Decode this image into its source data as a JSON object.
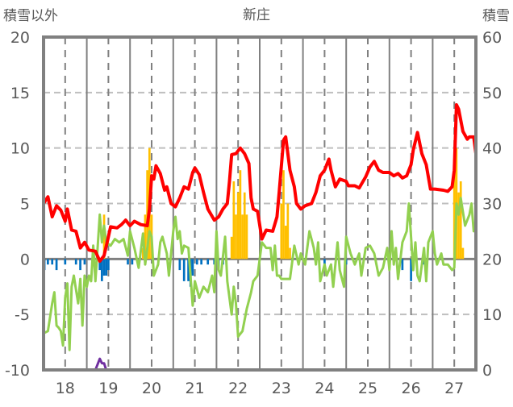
{
  "chart_data": {
    "type": "line",
    "title": "新庄",
    "ylabel": "積雪以外",
    "y2label": "積雪",
    "ylim": [
      -10,
      20
    ],
    "y2lim": [
      0,
      60
    ],
    "xlim": [
      17.5,
      27.5
    ],
    "yticks": [
      "20",
      "15",
      "10",
      "5",
      "0",
      "-5",
      "-10"
    ],
    "y2ticks": [
      "60",
      "50",
      "40",
      "30",
      "20",
      "10",
      "0"
    ],
    "xticks": [
      "18",
      "19",
      "20",
      "21",
      "22",
      "23",
      "24",
      "25",
      "26",
      "27"
    ],
    "grid": true,
    "colors": {
      "red": "#ff0000",
      "green": "#92d050",
      "orange": "#ffc000",
      "blue": "#0070c0",
      "purple": "#7030a0",
      "frame": "#808080"
    },
    "series": [
      {
        "name": "red-line",
        "axis": "left",
        "kind": "line",
        "color": "#ff0000",
        "x": [
          17.5,
          17.6,
          17.7,
          17.8,
          17.9,
          18.0,
          18.05,
          18.15,
          18.25,
          18.35,
          18.45,
          18.55,
          18.7,
          18.8,
          18.9,
          19.0,
          19.05,
          19.2,
          19.3,
          19.4,
          19.5,
          19.6,
          19.75,
          19.9,
          19.95,
          20.0,
          20.05,
          20.1,
          20.2,
          20.3,
          20.35,
          20.45,
          20.55,
          20.65,
          20.75,
          20.85,
          20.95,
          21.0,
          21.1,
          21.2,
          21.3,
          21.45,
          21.55,
          21.65,
          21.75,
          21.8,
          21.85,
          21.95,
          22.05,
          22.15,
          22.25,
          22.3,
          22.35,
          22.45,
          22.55,
          22.65,
          22.8,
          22.9,
          22.95,
          23.05,
          23.1,
          23.2,
          23.3,
          23.35,
          23.45,
          23.55,
          23.7,
          23.8,
          23.9,
          24.0,
          24.1,
          24.15,
          24.25,
          24.35,
          24.5,
          24.55,
          24.7,
          24.8,
          24.95,
          25.05,
          25.15,
          25.25,
          25.35,
          25.5,
          25.6,
          25.7,
          25.8,
          25.9,
          26.0,
          26.05,
          26.15,
          26.25,
          26.35,
          26.45,
          26.55,
          26.75,
          26.85,
          26.95,
          27.0,
          27.05,
          27.1,
          27.2,
          27.3,
          27.35,
          27.45,
          27.5
        ],
        "y": [
          5,
          5.6,
          3.8,
          4.8,
          4.4,
          3.4,
          4.5,
          2.6,
          2.5,
          1.0,
          1.5,
          0.8,
          0.7,
          -0.2,
          0.3,
          2.0,
          2.9,
          2.8,
          3.1,
          3.5,
          3.0,
          3.4,
          3.1,
          3.0,
          4.5,
          7.5,
          7.2,
          8.4,
          7.7,
          6.2,
          6.5,
          5.0,
          4.7,
          5.5,
          6.5,
          6.3,
          7.8,
          8.2,
          7.6,
          6.0,
          4.5,
          3.5,
          3.8,
          4.5,
          5.0,
          7.0,
          9.4,
          9.5,
          10.0,
          9.5,
          8.6,
          5.5,
          4.5,
          4.3,
          1.8,
          2.6,
          2.5,
          3.8,
          6.0,
          10.7,
          11.0,
          8.0,
          6.5,
          5.0,
          4.5,
          4.8,
          5.0,
          6.0,
          7.5,
          8.0,
          9.0,
          8.0,
          6.5,
          7.2,
          7.0,
          6.6,
          6.6,
          6.4,
          7.4,
          8.3,
          8.8,
          8.0,
          7.8,
          7.8,
          7.5,
          7.7,
          7.3,
          7.5,
          8.5,
          9.8,
          11.4,
          9.5,
          8.5,
          6.3,
          6.3,
          6.2,
          6.1,
          6.5,
          8.0,
          13.9,
          13.5,
          11.5,
          10.8,
          11.0,
          11.0,
          9.5
        ]
      },
      {
        "name": "green-line",
        "axis": "left",
        "kind": "line",
        "color": "#92d050",
        "x": [
          17.5,
          17.6,
          17.7,
          17.75,
          17.8,
          17.85,
          17.9,
          17.95,
          18.0,
          18.05,
          18.1,
          18.15,
          18.2,
          18.3,
          18.35,
          18.4,
          18.45,
          18.5,
          18.55,
          18.6,
          18.65,
          18.7,
          18.75,
          18.8,
          18.85,
          18.9,
          18.95,
          19.05,
          19.15,
          19.25,
          19.35,
          19.45,
          19.5,
          19.6,
          19.7,
          19.8,
          19.85,
          19.95,
          20.0,
          20.05,
          20.15,
          20.2,
          20.25,
          20.35,
          20.4,
          20.5,
          20.55,
          20.6,
          20.65,
          20.7,
          20.75,
          20.85,
          20.95,
          21.0,
          21.1,
          21.2,
          21.3,
          21.4,
          21.45,
          21.5,
          21.55,
          21.6,
          21.7,
          21.75,
          21.85,
          21.9,
          21.95,
          22.0,
          22.1,
          22.2,
          22.3,
          22.35,
          22.45,
          22.55,
          22.65,
          22.75,
          22.8,
          22.85,
          22.9,
          22.95,
          23.0,
          23.1,
          23.2,
          23.3,
          23.4,
          23.45,
          23.55,
          23.65,
          23.75,
          23.8,
          23.85,
          23.9,
          24.0,
          24.05,
          24.15,
          24.2,
          24.3,
          24.35,
          24.45,
          24.5,
          24.6,
          24.7,
          24.8,
          24.85,
          24.95,
          25.05,
          25.15,
          25.25,
          25.35,
          25.45,
          25.5,
          25.55,
          25.6,
          25.65,
          25.7,
          25.8,
          25.9,
          25.95,
          26.05,
          26.1,
          26.15,
          26.2,
          26.3,
          26.35,
          26.4,
          26.5,
          26.55,
          26.6,
          26.7,
          26.75,
          26.85,
          26.95,
          27.0,
          27.05,
          27.1,
          27.15,
          27.25,
          27.35,
          27.4,
          27.45,
          27.5
        ],
        "y": [
          -6.7,
          -6.5,
          -4,
          -3,
          -6,
          -6.2,
          -6.5,
          -7.8,
          -3.5,
          -2.2,
          -8.2,
          -2.5,
          -1.5,
          -4,
          -1.8,
          -6,
          -1.5,
          -2.5,
          -1.5,
          -2,
          1.2,
          -2,
          1,
          4,
          1.5,
          3,
          1.5,
          1.2,
          1.8,
          1.5,
          1.8,
          0.3,
          2.5,
          1.0,
          -0.8,
          2.3,
          -0.5,
          2.5,
          2.0,
          -1.5,
          -0.5,
          1.5,
          2.0,
          0.5,
          -1.5,
          2.5,
          3.8,
          1.8,
          2.5,
          0.5,
          1.2,
          1.0,
          -4.2,
          -2,
          -3.5,
          -2.5,
          -3,
          -1.5,
          -3,
          2.5,
          -1,
          -1.5,
          2,
          -2,
          -5,
          -2.5,
          -4,
          -7,
          -6.5,
          -4.5,
          -3,
          -2,
          -1.5,
          1.5,
          1,
          1,
          -1,
          1.2,
          -1.5,
          -1.5,
          -1.8,
          -1.8,
          -1.8,
          1.2,
          -0.5,
          0.5,
          -0.5,
          2.5,
          1,
          -0.5,
          1.5,
          -2,
          -0.5,
          -1.5,
          -0.5,
          -2.5,
          1.5,
          -1,
          -2.5,
          2,
          0.5,
          -0.5,
          0.5,
          -1.5,
          1,
          1.2,
          0.5,
          -1.5,
          -0.8,
          1,
          -1,
          2.5,
          -0.5,
          1,
          -1.8,
          1.5,
          2.5,
          5,
          -1,
          1.5,
          -1.5,
          -2,
          1,
          -2,
          1.5,
          2.5,
          0.5,
          -0.5,
          0.5,
          -0.5,
          -0.5,
          -1,
          -0.8,
          5,
          4,
          5.5,
          3,
          4,
          5,
          2.5,
          2.5
        ]
      },
      {
        "name": "purple-line",
        "axis": "right",
        "kind": "line",
        "color": "#7030a0",
        "x": [
          17.5,
          18.7,
          18.8,
          18.85,
          18.9,
          18.95,
          27.5
        ],
        "y": [
          0,
          0,
          2,
          1.2,
          1.2,
          0,
          0
        ]
      },
      {
        "name": "orange-bars",
        "axis": "left",
        "kind": "bar",
        "color": "#ffc000",
        "x": [
          18.9,
          19.8,
          19.85,
          19.9,
          19.95,
          20.0,
          21.85,
          21.9,
          21.95,
          22.0,
          22.05,
          22.1,
          22.15,
          22.2,
          23.0,
          23.05,
          23.1,
          23.15,
          23.2,
          27.0,
          27.05,
          27.1,
          27.15,
          27.2
        ],
        "y": [
          4,
          1,
          4,
          8,
          10,
          4,
          2,
          7,
          4,
          6,
          8,
          4,
          6,
          4,
          5,
          8,
          3,
          5,
          1,
          9,
          10,
          6,
          7,
          1
        ]
      },
      {
        "name": "blue-bars",
        "axis": "left",
        "kind": "bar",
        "color": "#0070c0",
        "x": [
          17.52,
          17.6,
          17.7,
          17.8,
          18.0,
          18.25,
          18.35,
          18.45,
          18.8,
          18.85,
          18.9,
          18.95,
          19.0,
          19.45,
          19.55,
          20.65,
          20.75,
          20.85,
          20.9,
          20.95,
          21.05,
          21.15,
          21.3,
          21.45,
          21.55,
          21.65,
          24.0,
          24.5,
          25.8,
          26.0,
          26.3
        ],
        "y": [
          -1,
          -0.5,
          -0.5,
          -1,
          -0.5,
          -0.5,
          -1,
          -0.5,
          -1,
          -2,
          -1.5,
          -1.5,
          -1,
          -0.5,
          -0.5,
          -1,
          -2,
          -2,
          -2.5,
          -1.5,
          -0.5,
          -0.5,
          -0.5,
          -0.5,
          -1,
          -0.5,
          -0.5,
          -0.5,
          -1,
          -2,
          -0.5
        ]
      }
    ]
  }
}
